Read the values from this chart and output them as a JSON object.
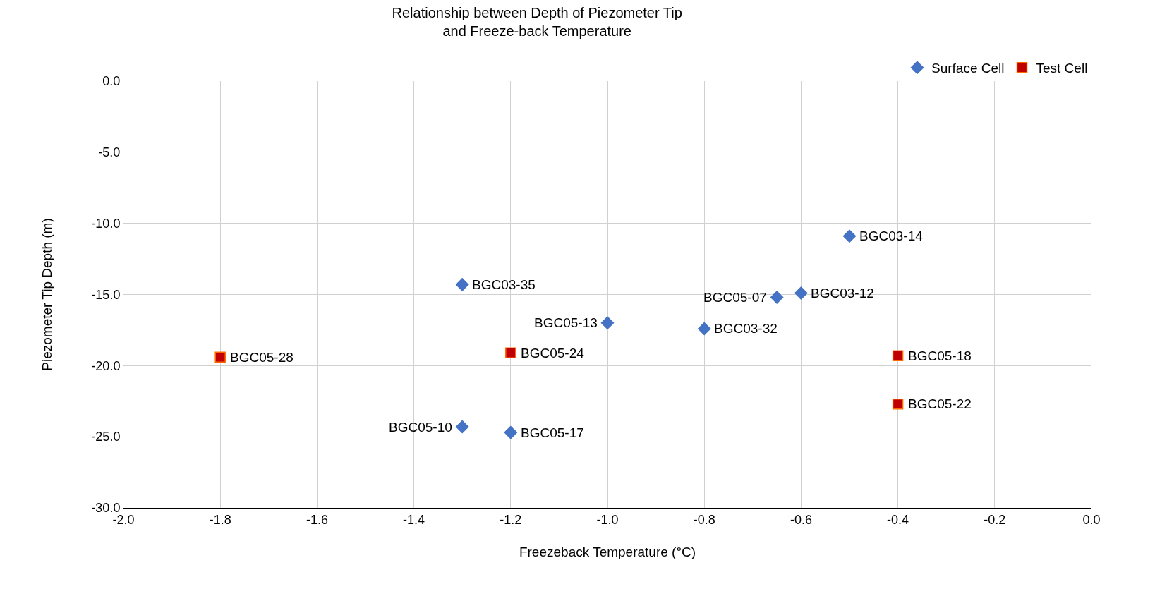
{
  "chart_data": {
    "type": "scatter",
    "title": "Relationship between Depth of Piezometer Tip\nand Freeze-back Temperature",
    "xlabel": "Freezeback Temperature (°C)",
    "ylabel": "Piezometer Tip Depth (m)",
    "xlim": [
      -2.0,
      0.0
    ],
    "xticks": [
      {
        "value": -2.0,
        "label": "-2.0"
      },
      {
        "value": -1.8,
        "label": "-1.8"
      },
      {
        "value": -1.6,
        "label": "-1.6"
      },
      {
        "value": -1.4,
        "label": "-1.4"
      },
      {
        "value": -1.2,
        "label": "-1.2"
      },
      {
        "value": -1.0,
        "label": "-1.0"
      },
      {
        "value": -0.8,
        "label": "-0.8"
      },
      {
        "value": -0.6,
        "label": "-0.6"
      },
      {
        "value": -0.4,
        "label": "-0.4"
      },
      {
        "value": -0.2,
        "label": "-0.2"
      },
      {
        "value": 0.0,
        "label": "0.0"
      }
    ],
    "ylim": [
      -30.0,
      0.0
    ],
    "yticks": [
      {
        "value": 0.0,
        "label": "0.0"
      },
      {
        "value": -5.0,
        "label": "-5.0"
      },
      {
        "value": -10.0,
        "label": "-10.0"
      },
      {
        "value": -15.0,
        "label": "-15.0"
      },
      {
        "value": -20.0,
        "label": "-20.0"
      },
      {
        "value": -25.0,
        "label": "-25.0"
      },
      {
        "value": -30.0,
        "label": "-30.0"
      }
    ],
    "grid": true,
    "legend": "top right",
    "series": [
      {
        "name": "Surface Cell",
        "color": "#4472c4",
        "marker": "diamond",
        "x": [
          -0.5,
          -1.3,
          -0.65,
          -0.6,
          -1.0,
          -0.8,
          -1.3,
          -1.2
        ],
        "values": [
          -10.9,
          -14.3,
          -15.2,
          -14.9,
          -17.0,
          -17.4,
          -24.3,
          -24.7
        ]
      },
      {
        "name": "Test Cell",
        "color": "#c00000",
        "marker": "square",
        "x": [
          -1.8,
          -1.2,
          -0.4,
          -0.4
        ],
        "values": [
          -19.4,
          -19.1,
          -19.3,
          -22.7
        ]
      }
    ],
    "annotations": [
      {
        "text": "BGC03-14",
        "x": -0.5,
        "y": -10.9
      },
      {
        "text": "BGC03-35",
        "x": -1.3,
        "y": -14.3
      },
      {
        "text": "BGC05-07",
        "x": -0.65,
        "y": -15.2
      },
      {
        "text": "BGC03-12",
        "x": -0.6,
        "y": -14.9
      },
      {
        "text": "BGC05-13",
        "x": -1.0,
        "y": -17.0
      },
      {
        "text": "BGC03-32",
        "x": -0.8,
        "y": -17.4
      },
      {
        "text": "BGC05-10",
        "x": -1.3,
        "y": -24.3
      },
      {
        "text": "BGC05-17",
        "x": -1.2,
        "y": -24.7
      },
      {
        "text": "BGC05-28",
        "x": -1.8,
        "y": -19.4
      },
      {
        "text": "BGC05-24",
        "x": -1.2,
        "y": -19.1
      },
      {
        "text": "BGC05-18",
        "x": -0.4,
        "y": -19.3
      },
      {
        "text": "BGC05-22",
        "x": -0.4,
        "y": -22.7
      }
    ]
  }
}
